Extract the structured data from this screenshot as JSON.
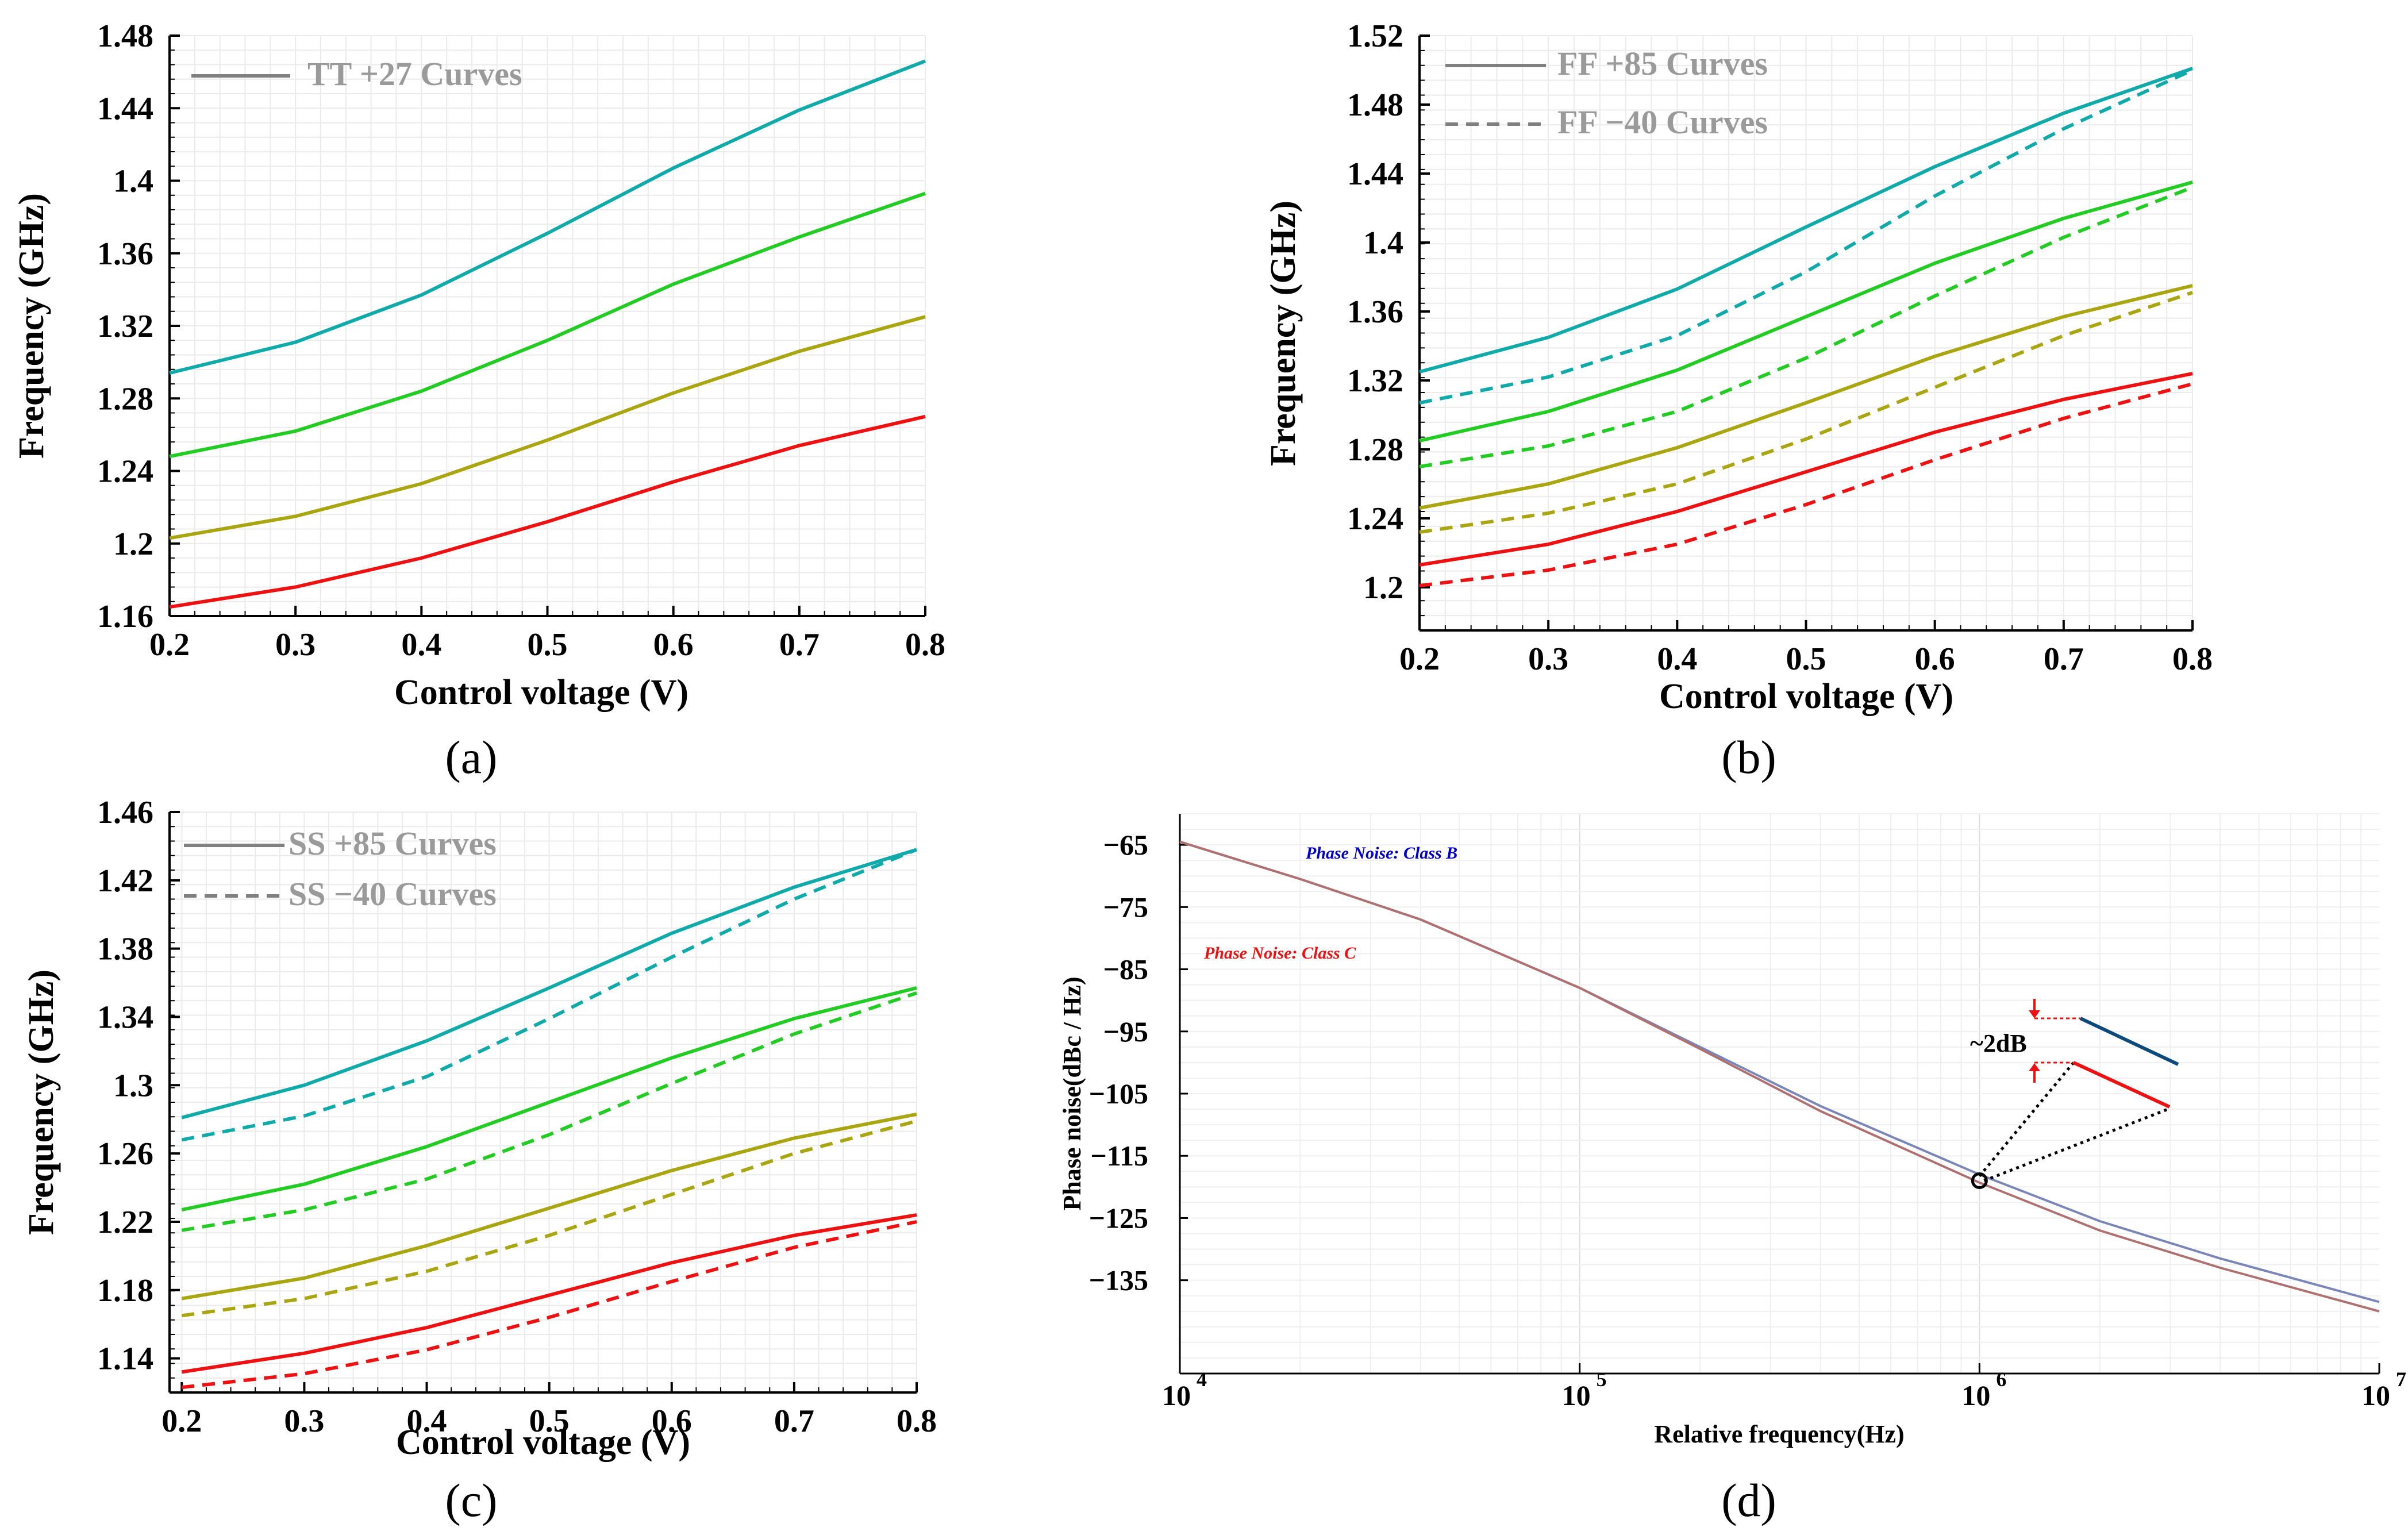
{
  "colors": {
    "teal": "#11aaaa",
    "green": "#22cc22",
    "olive": "#aaa611",
    "red": "#ee1111",
    "class_b": "#7a86b8",
    "class_c": "#b07070",
    "ann_b": "#0000cc",
    "ann_c": "#ee1111",
    "ann_line_b": "#0b4a7a"
  },
  "chart_data": [
    {
      "id": "a",
      "panel_label": "(a)",
      "type": "line",
      "xlabel": "Control voltage (V)",
      "ylabel": "Frequency (GHz)",
      "xlim": [
        0.2,
        0.8
      ],
      "ylim": [
        1.16,
        1.48
      ],
      "xticks": [
        "0.2",
        "0.3",
        "0.4",
        "0.5",
        "0.6",
        "0.7",
        "0.8"
      ],
      "yticks": [
        "1.16",
        "1.2",
        "1.24",
        "1.28",
        "1.32",
        "1.36",
        "1.4",
        "1.44",
        "1.48"
      ],
      "grid": true,
      "legend_position": "top-left",
      "legend": [
        {
          "label": "TT +27 Curves",
          "style": "solid"
        }
      ],
      "x": [
        0.2,
        0.3,
        0.4,
        0.5,
        0.6,
        0.7,
        0.8
      ],
      "series": [
        {
          "color": "teal",
          "style": "solid",
          "values": [
            1.294,
            1.311,
            1.337,
            1.371,
            1.407,
            1.439,
            1.466
          ]
        },
        {
          "color": "green",
          "style": "solid",
          "values": [
            1.248,
            1.262,
            1.284,
            1.312,
            1.343,
            1.369,
            1.393
          ]
        },
        {
          "color": "olive",
          "style": "solid",
          "values": [
            1.203,
            1.215,
            1.233,
            1.257,
            1.283,
            1.306,
            1.325
          ]
        },
        {
          "color": "red",
          "style": "solid",
          "values": [
            1.165,
            1.176,
            1.192,
            1.212,
            1.234,
            1.254,
            1.27
          ]
        }
      ]
    },
    {
      "id": "b",
      "panel_label": "(b)",
      "type": "line",
      "xlabel": "Control voltage (V)",
      "ylabel": "Frequency (GHz)",
      "xlim": [
        0.2,
        0.8
      ],
      "ylim": [
        1.175,
        1.52
      ],
      "xticks": [
        "0.2",
        "0.3",
        "0.4",
        "0.5",
        "0.6",
        "0.7",
        "0.8"
      ],
      "yticks": [
        "1.2",
        "1.24",
        "1.28",
        "1.32",
        "1.36",
        "1.4",
        "1.44",
        "1.48",
        "1.52"
      ],
      "grid": true,
      "legend_position": "top-left",
      "legend": [
        {
          "label": "FF +85 Curves",
          "style": "solid"
        },
        {
          "label": "FF −40 Curves",
          "style": "dashed"
        }
      ],
      "x": [
        0.2,
        0.3,
        0.4,
        0.5,
        0.6,
        0.7,
        0.8
      ],
      "series": [
        {
          "color": "teal",
          "style": "solid",
          "values": [
            1.325,
            1.345,
            1.373,
            1.409,
            1.444,
            1.475,
            1.501
          ]
        },
        {
          "color": "teal",
          "style": "dashed",
          "values": [
            1.307,
            1.322,
            1.346,
            1.383,
            1.427,
            1.466,
            1.5
          ]
        },
        {
          "color": "green",
          "style": "solid",
          "values": [
            1.285,
            1.302,
            1.326,
            1.357,
            1.388,
            1.414,
            1.435
          ]
        },
        {
          "color": "green",
          "style": "dashed",
          "values": [
            1.27,
            1.282,
            1.302,
            1.333,
            1.369,
            1.403,
            1.432
          ]
        },
        {
          "color": "olive",
          "style": "solid",
          "values": [
            1.246,
            1.26,
            1.281,
            1.307,
            1.334,
            1.357,
            1.375
          ]
        },
        {
          "color": "olive",
          "style": "dashed",
          "values": [
            1.232,
            1.243,
            1.26,
            1.286,
            1.316,
            1.346,
            1.371
          ]
        },
        {
          "color": "red",
          "style": "solid",
          "values": [
            1.213,
            1.225,
            1.244,
            1.267,
            1.29,
            1.309,
            1.324
          ]
        },
        {
          "color": "red",
          "style": "dashed",
          "values": [
            1.201,
            1.21,
            1.225,
            1.248,
            1.274,
            1.298,
            1.318
          ]
        }
      ]
    },
    {
      "id": "c",
      "panel_label": "(c)",
      "type": "line",
      "xlabel": "Control voltage (V)",
      "ylabel": "Frequency (GHz)",
      "xlim": [
        0.19,
        0.8
      ],
      "ylim": [
        1.12,
        1.46
      ],
      "xticks": [
        "0.2",
        "0.3",
        "0.4",
        "0.5",
        "0.6",
        "0.7",
        "0.8"
      ],
      "yticks": [
        "1.14",
        "1.18",
        "1.22",
        "1.26",
        "1.3",
        "1.34",
        "1.38",
        "1.42",
        "1.46"
      ],
      "grid": true,
      "legend_position": "top-left",
      "legend": [
        {
          "label": "SS +85 Curves",
          "style": "solid"
        },
        {
          "label": "SS  −40 Curves",
          "style": "dashed"
        }
      ],
      "x": [
        0.2,
        0.3,
        0.4,
        0.5,
        0.6,
        0.7,
        0.8
      ],
      "series": [
        {
          "color": "teal",
          "style": "solid",
          "values": [
            1.281,
            1.3,
            1.326,
            1.357,
            1.389,
            1.416,
            1.438
          ]
        },
        {
          "color": "teal",
          "style": "dashed",
          "values": [
            1.268,
            1.282,
            1.305,
            1.339,
            1.375,
            1.409,
            1.438
          ]
        },
        {
          "color": "green",
          "style": "solid",
          "values": [
            1.227,
            1.242,
            1.264,
            1.29,
            1.316,
            1.339,
            1.357
          ]
        },
        {
          "color": "green",
          "style": "dashed",
          "values": [
            1.215,
            1.227,
            1.245,
            1.271,
            1.301,
            1.33,
            1.354
          ]
        },
        {
          "color": "olive",
          "style": "solid",
          "values": [
            1.175,
            1.187,
            1.206,
            1.228,
            1.25,
            1.269,
            1.283
          ]
        },
        {
          "color": "olive",
          "style": "dashed",
          "values": [
            1.165,
            1.175,
            1.191,
            1.212,
            1.236,
            1.26,
            1.279
          ]
        },
        {
          "color": "red",
          "style": "solid",
          "values": [
            1.132,
            1.143,
            1.158,
            1.177,
            1.196,
            1.212,
            1.224
          ]
        },
        {
          "color": "red",
          "style": "dashed",
          "values": [
            1.123,
            1.131,
            1.145,
            1.164,
            1.185,
            1.205,
            1.22
          ]
        }
      ]
    },
    {
      "id": "d",
      "panel_label": "(d)",
      "type": "line",
      "xscale": "log",
      "xlabel": "Relative frequency(Hz)",
      "ylabel": "Phase noise(dBc / Hz)",
      "xlim": [
        10000,
        10000000
      ],
      "ylim": [
        -150,
        -60
      ],
      "xticks": [
        {
          "base": "10",
          "exp": "4"
        },
        {
          "base": "10",
          "exp": "5"
        },
        {
          "base": "10",
          "exp": "6"
        },
        {
          "base": "10",
          "exp": "7"
        }
      ],
      "yticks": [
        "-65",
        "-75",
        "-85",
        "-95",
        "-105",
        "-115",
        "-125",
        "-135"
      ],
      "grid": true,
      "annotations": {
        "class_b_label": "Phase Noise: Class B",
        "class_c_label": "Phase Noise: Class C",
        "delta_label": "~2dB",
        "marker_x": 1000000,
        "marker_y": -119
      },
      "series": [
        {
          "name": "Phase Noise: Class B",
          "color": "class_b",
          "x": [
            10000,
            20000,
            40000,
            100000,
            200000,
            400000,
            1000000,
            2000000,
            4000000,
            10000000
          ],
          "values": [
            -64.5,
            -70.5,
            -77.0,
            -88.0,
            -97.5,
            -107.0,
            -118.0,
            -125.5,
            -131.5,
            -138.5
          ]
        },
        {
          "name": "Phase Noise: Class C",
          "color": "class_c",
          "x": [
            10000,
            20000,
            40000,
            100000,
            200000,
            400000,
            1000000,
            2000000,
            4000000,
            10000000
          ],
          "values": [
            -64.5,
            -70.5,
            -77.0,
            -88.0,
            -97.8,
            -107.8,
            -119.3,
            -127.0,
            -133.0,
            -140.0
          ]
        }
      ]
    }
  ]
}
